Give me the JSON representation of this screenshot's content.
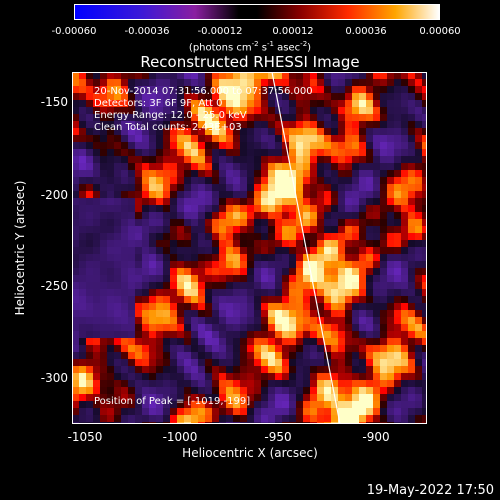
{
  "colorbar": {
    "ticks": [
      "-0.00060",
      "-0.00036",
      "-0.00012",
      "0.00012",
      "0.00036",
      "0.00060"
    ],
    "units_main": "(photons cm",
    "units_sup1": "-2",
    "units_mid1": " s",
    "units_sup2": "-1",
    "units_mid2": " asec",
    "units_sup3": "-2",
    "units_end": ")"
  },
  "title": "Reconstructed RHESSI Image",
  "annotations": {
    "time_range": "20-Nov-2014 07:31:56.000 to 07:37:56.000",
    "detectors": "Detectors: 3F 6F 9F, Att 0",
    "energy_range": "Energy Range: 12.0 - 25.0 keV",
    "clean": "Clean     Total counts: 2.43E+03",
    "peak": "Position of Peak = [-1019,-199]"
  },
  "axes": {
    "xlabel": "Heliocentric X (arcsec)",
    "ylabel": "Heliocentric Y (arcsec)",
    "xticks": [
      "-1050",
      "-1000",
      "-950",
      "-900"
    ],
    "yticks": [
      "-150",
      "-200",
      "-250",
      "-300"
    ]
  },
  "footer": "19-May-2022 17:50"
}
